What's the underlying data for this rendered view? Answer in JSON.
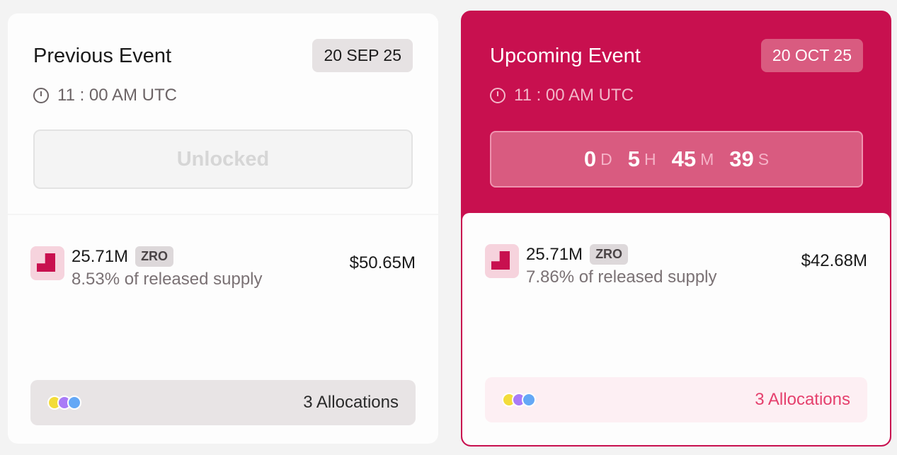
{
  "previous": {
    "title": "Previous Event",
    "date": "20 SEP 25",
    "time": "11 : 00 AM UTC",
    "status": "Unlocked",
    "amount": "25.71M",
    "symbol": "ZRO",
    "supply": "8.53% of released supply",
    "usd": "$50.65M",
    "allocations": "3 Allocations"
  },
  "upcoming": {
    "title": "Upcoming Event",
    "date": "20 OCT 25",
    "time": "11 : 00 AM UTC",
    "countdown": {
      "d": "0",
      "d_unit": "D",
      "h": "5",
      "h_unit": "H",
      "m": "45",
      "m_unit": "M",
      "s": "39",
      "s_unit": "S"
    },
    "amount": "25.71M",
    "symbol": "ZRO",
    "supply": "7.86% of released supply",
    "usd": "$42.68M",
    "allocations": "3 Allocations"
  },
  "colors": {
    "accent": "#c8104f",
    "dots": [
      "#f3dc3a",
      "#a97bf7",
      "#64a8f6"
    ]
  },
  "icons": {
    "clock": "clock-icon",
    "token": "zro-token-icon"
  }
}
